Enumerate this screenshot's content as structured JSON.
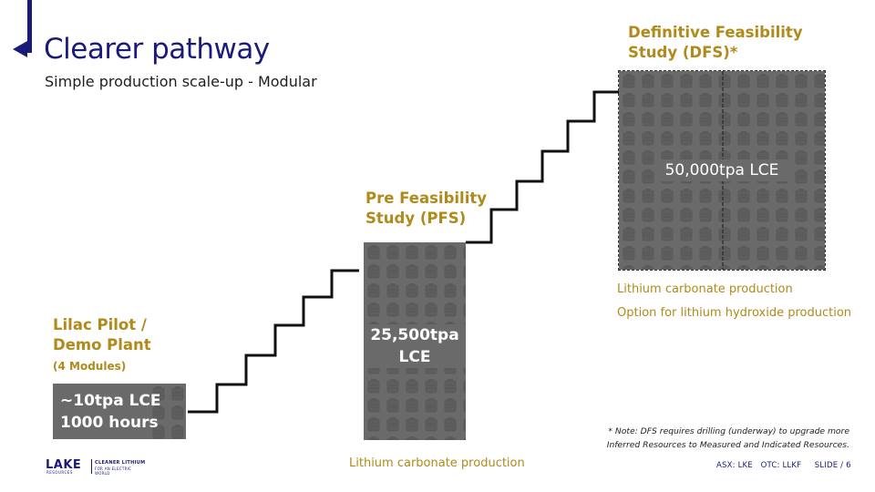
{
  "slide": {
    "title": "Clearer pathway",
    "subtitle": "Simple production scale-up - Modular"
  },
  "stages": [
    {
      "title_line1": "Lilac Pilot /",
      "title_line2": "Demo Plant",
      "sub": "(4 Modules)",
      "box_line1": "~10tpa LCE",
      "box_line2": "1000 hours"
    },
    {
      "title_line1": "Pre Feasibility",
      "title_line2": "Study (PFS)",
      "box_line1": "25,500tpa",
      "box_line2": "LCE",
      "caption": "Lithium carbonate production"
    },
    {
      "title_line1": "Definitive Feasibility",
      "title_line2": "Study (DFS)*",
      "box_line1": "50,000tpa LCE",
      "caption_line1": "Lithium carbonate production",
      "caption_line2": "Option for lithium hydroxide production"
    }
  ],
  "note": {
    "line1": "* Note: DFS requires drilling (underway) to upgrade more",
    "line2": "Inferred Resources to  Measured and Indicated Resources."
  },
  "footer": {
    "logo_word": "LAKE",
    "logo_sub": "RESOURCES",
    "logo_tag1": "CLEANER LITHIUM",
    "logo_tag2": "FOR AN ELECTRIC WORLD",
    "right_text": "ASX: LKE   OTC: LLKF     SLIDE / 6"
  },
  "colors": {
    "navy": "#1a1a7a",
    "gold": "#b08a1a",
    "box_gray": "#6a6a6a"
  }
}
